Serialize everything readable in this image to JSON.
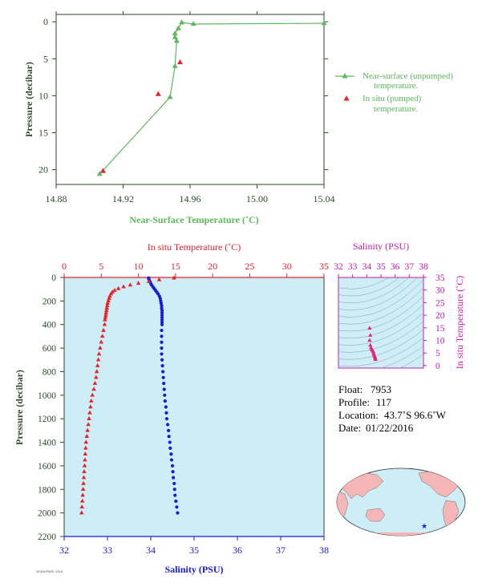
{
  "colors": {
    "green": "#5cb85c",
    "red": "#e8222b",
    "blue": "#1a1adb",
    "magenta": "#cc1aa8",
    "axis_dark": "#2d4a2d",
    "panel_bg": "#cdeef7"
  },
  "chart_data": [
    {
      "id": "near-surface",
      "type": "line",
      "xlabel": "Near-Surface Temperature (˚C)",
      "ylabel": "Pressure (decibar)",
      "xlim": [
        14.88,
        15.04
      ],
      "ylim": [
        22,
        -1
      ],
      "xticks": [
        "14.88",
        "14.92",
        "14.96",
        "15.00",
        "15.04"
      ],
      "yticks": [
        "0",
        "5",
        "10",
        "15",
        "20"
      ],
      "legend_position": "right",
      "series": [
        {
          "name": "Near-surface (unpumped) temperature.",
          "legend_lines": [
            "Near-surface (unpumped)",
            "temperature."
          ],
          "marker": "triangle-line",
          "points": [
            [
              15.04,
              0.2
            ],
            [
              14.962,
              0.3
            ],
            [
              14.955,
              0.1
            ],
            [
              14.953,
              0.9
            ],
            [
              14.951,
              1.6
            ],
            [
              14.951,
              2.1
            ],
            [
              14.952,
              2.6
            ],
            [
              14.951,
              6.0
            ],
            [
              14.948,
              10.2
            ],
            [
              14.906,
              20.6
            ]
          ]
        },
        {
          "name": "In situ (pumped) temperature.",
          "legend_lines": [
            "In situ (pumped)",
            "temperature."
          ],
          "marker": "triangle",
          "points": [
            [
              14.954,
              5.5
            ],
            [
              14.941,
              9.8
            ],
            [
              14.908,
              20.2
            ]
          ]
        }
      ]
    },
    {
      "id": "profile",
      "type": "scatter",
      "xlabel": "Salinity (PSU)",
      "x2label": "In situ Temperature (˚C)",
      "ylabel": "Pressure (decibar)",
      "salinity_lim": [
        32,
        38
      ],
      "temperature_lim": [
        0,
        35
      ],
      "ylim": [
        2200,
        0
      ],
      "salinity_ticks": [
        "32",
        "33",
        "34",
        "35",
        "36",
        "37",
        "38"
      ],
      "temperature_ticks": [
        "0",
        "5",
        "10",
        "15",
        "20",
        "25",
        "30",
        "35"
      ],
      "yticks": [
        "0",
        "200",
        "400",
        "600",
        "800",
        "1000",
        "1200",
        "1400",
        "1600",
        "1800",
        "2000",
        "2200"
      ],
      "series": [
        {
          "name": "In situ Temperature",
          "axis": "temperature",
          "marker": "triangle",
          "points": [
            [
              14.8,
              5
            ],
            [
              12.8,
              20
            ],
            [
              11.4,
              35
            ],
            [
              10.0,
              50
            ],
            [
              8.9,
              65
            ],
            [
              8.0,
              80
            ],
            [
              7.3,
              95
            ],
            [
              6.8,
              110
            ],
            [
              6.5,
              125
            ],
            [
              6.3,
              140
            ],
            [
              6.15,
              160
            ],
            [
              6.05,
              180
            ],
            [
              5.95,
              200
            ],
            [
              5.85,
              220
            ],
            [
              5.8,
              240
            ],
            [
              5.75,
              260
            ],
            [
              5.7,
              280
            ],
            [
              5.65,
              300
            ],
            [
              5.6,
              320
            ],
            [
              5.55,
              340
            ],
            [
              5.5,
              360
            ],
            [
              5.45,
              400
            ],
            [
              5.3,
              450
            ],
            [
              5.15,
              500
            ],
            [
              5.0,
              550
            ],
            [
              4.85,
              600
            ],
            [
              4.7,
              650
            ],
            [
              4.6,
              700
            ],
            [
              4.5,
              750
            ],
            [
              4.4,
              800
            ],
            [
              4.3,
              850
            ],
            [
              4.15,
              900
            ],
            [
              4.0,
              950
            ],
            [
              3.8,
              1000
            ],
            [
              3.65,
              1050
            ],
            [
              3.55,
              1100
            ],
            [
              3.45,
              1150
            ],
            [
              3.35,
              1200
            ],
            [
              3.25,
              1250
            ],
            [
              3.15,
              1300
            ],
            [
              3.05,
              1350
            ],
            [
              2.95,
              1400
            ],
            [
              2.9,
              1450
            ],
            [
              2.85,
              1500
            ],
            [
              2.8,
              1550
            ],
            [
              2.75,
              1600
            ],
            [
              2.7,
              1650
            ],
            [
              2.65,
              1700
            ],
            [
              2.6,
              1750
            ],
            [
              2.55,
              1800
            ],
            [
              2.5,
              1850
            ],
            [
              2.45,
              1900
            ],
            [
              2.4,
              1950
            ],
            [
              2.35,
              2000
            ]
          ]
        },
        {
          "name": "Salinity",
          "axis": "salinity",
          "marker": "dot",
          "points": [
            [
              33.95,
              5
            ],
            [
              33.96,
              20
            ],
            [
              33.98,
              35
            ],
            [
              34.0,
              50
            ],
            [
              34.02,
              65
            ],
            [
              34.05,
              80
            ],
            [
              34.08,
              95
            ],
            [
              34.11,
              110
            ],
            [
              34.14,
              125
            ],
            [
              34.17,
              140
            ],
            [
              34.2,
              160
            ],
            [
              34.22,
              180
            ],
            [
              34.23,
              200
            ],
            [
              34.24,
              220
            ],
            [
              34.25,
              240
            ],
            [
              34.25,
              260
            ],
            [
              34.26,
              280
            ],
            [
              34.26,
              300
            ],
            [
              34.26,
              320
            ],
            [
              34.26,
              340
            ],
            [
              34.26,
              360
            ],
            [
              34.26,
              380
            ],
            [
              34.26,
              400
            ],
            [
              34.25,
              450
            ],
            [
              34.25,
              500
            ],
            [
              34.25,
              550
            ],
            [
              34.25,
              600
            ],
            [
              34.25,
              650
            ],
            [
              34.26,
              700
            ],
            [
              34.27,
              750
            ],
            [
              34.28,
              800
            ],
            [
              34.29,
              850
            ],
            [
              34.3,
              900
            ],
            [
              34.31,
              950
            ],
            [
              34.32,
              1000
            ],
            [
              34.33,
              1050
            ],
            [
              34.35,
              1100
            ],
            [
              34.36,
              1150
            ],
            [
              34.37,
              1200
            ],
            [
              34.39,
              1250
            ],
            [
              34.41,
              1300
            ],
            [
              34.42,
              1350
            ],
            [
              34.44,
              1400
            ],
            [
              34.45,
              1450
            ],
            [
              34.47,
              1500
            ],
            [
              34.48,
              1550
            ],
            [
              34.5,
              1600
            ],
            [
              34.51,
              1650
            ],
            [
              34.52,
              1700
            ],
            [
              34.54,
              1750
            ],
            [
              34.55,
              1800
            ],
            [
              34.56,
              1850
            ],
            [
              34.58,
              1900
            ],
            [
              34.6,
              1950
            ],
            [
              34.62,
              2000
            ]
          ]
        }
      ]
    },
    {
      "id": "ts-diagram",
      "type": "scatter",
      "xlabel": "Salinity (PSU)",
      "ylabel": "In situ Temperature (˚C)",
      "xlim": [
        32,
        38
      ],
      "ylim": [
        -1,
        35
      ],
      "xticks": [
        "32",
        "33",
        "34",
        "35",
        "36",
        "37",
        "38"
      ],
      "yticks": [
        "0",
        "5",
        "10",
        "15",
        "20",
        "25",
        "30",
        "35"
      ],
      "grid": "density contours",
      "points": [
        [
          34.2,
          14.8
        ],
        [
          34.25,
          12
        ],
        [
          34.2,
          10
        ],
        [
          34.25,
          8
        ],
        [
          34.3,
          7
        ],
        [
          34.35,
          6.3
        ],
        [
          34.4,
          6.0
        ],
        [
          34.45,
          5.6
        ],
        [
          34.48,
          5.0
        ],
        [
          34.5,
          4.4
        ],
        [
          34.55,
          3.8
        ],
        [
          34.58,
          3.3
        ],
        [
          34.6,
          2.8
        ],
        [
          34.62,
          2.4
        ]
      ]
    }
  ],
  "float_info": {
    "float_label": "Float:",
    "float_value": "7953",
    "profile_label": "Profile:",
    "profile_value": "117",
    "location_label": "Location:",
    "location_value": "43.7˚S  96.6˚W",
    "date_label": "Date:",
    "date_value": "01/22/2016"
  },
  "map": {
    "marker_lat": -43.7,
    "marker_lon": -96.6,
    "land_color": "#f4b6b6",
    "ocean_color": "#cdeef7",
    "marker_color": "#1a1adb"
  },
  "credit": "NOAA/PMEL 2016"
}
